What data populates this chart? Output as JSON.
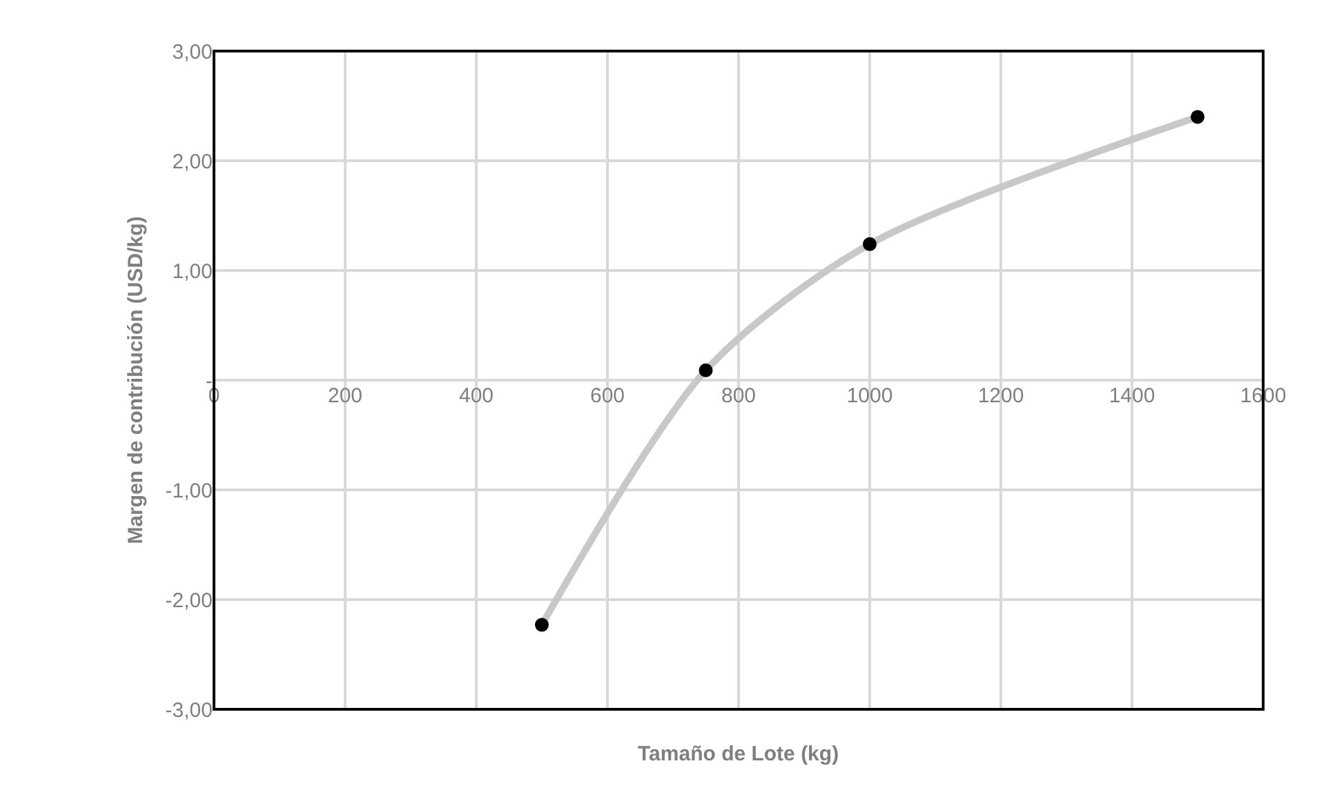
{
  "chart_data": {
    "type": "scatter",
    "xlabel": "Tamaño de Lote (kg)",
    "ylabel": "Margen de contribución (USD/kg)",
    "x": [
      500,
      750,
      1000,
      1500
    ],
    "series": [
      {
        "type": "line",
        "color": "#c8c8c8",
        "values": [
          -2.23,
          0.09,
          1.24,
          2.4
        ],
        "marker": "none"
      },
      {
        "color": "#000000",
        "values": [
          -2.23,
          0.09,
          1.24,
          2.4
        ],
        "marker": "circle"
      }
    ],
    "xlim": [
      0,
      1600
    ],
    "xticks": [
      0,
      200,
      400,
      600,
      800,
      1000,
      1200,
      1400,
      1600
    ],
    "ylim": [
      -3,
      3
    ],
    "yticks": [
      {
        "value": -3,
        "label": "-3,00"
      },
      {
        "value": -2,
        "label": "-2,00"
      },
      {
        "value": -1,
        "label": "-1,00"
      },
      {
        "value": 0,
        "label": "-"
      },
      {
        "value": 1,
        "label": "1,00"
      },
      {
        "value": 2,
        "label": "2,00"
      },
      {
        "value": 3,
        "label": "3,00"
      }
    ],
    "grid": true
  }
}
